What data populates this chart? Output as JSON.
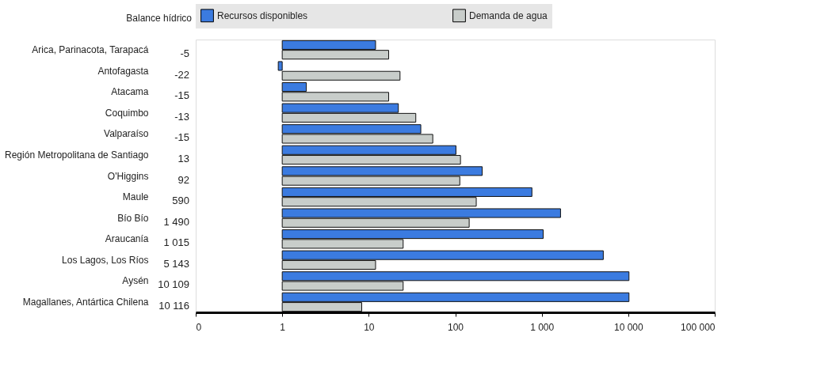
{
  "chart_data": {
    "type": "bar",
    "orientation": "horizontal",
    "log": "x",
    "categories": [
      "Arica, Parinacota, Tarapacá",
      "Antofagasta",
      "Atacama",
      "Coquimbo",
      "Valparaíso",
      "Región Metropolitana de Santiago",
      "O'Higgins",
      "Maule",
      "Bío Bío",
      "Araucanía",
      "Los Lagos, Los Ríos",
      "Aysén",
      "Magallanes, Antártica Chilena"
    ],
    "series": [
      {
        "name": "Recursos disponibles",
        "color": "#3b7be0",
        "base": [
          1,
          1,
          1,
          1,
          1,
          1,
          1,
          1,
          1,
          1,
          1,
          1,
          1
        ],
        "values": [
          11,
          -0.1,
          0.9,
          21,
          39,
          101,
          204,
          769,
          1649,
          1039,
          5149,
          10199,
          10199
        ]
      },
      {
        "name": "Demanda de agua",
        "color": "#c8cdca",
        "base": [
          1,
          1,
          1,
          1,
          1,
          1,
          1,
          1,
          1,
          1,
          1,
          1,
          1
        ],
        "values": [
          16,
          22,
          16,
          34,
          54,
          114,
          112,
          174,
          144,
          24,
          11,
          24,
          7.3
        ]
      }
    ],
    "xlim": [
      0.1,
      100000
    ],
    "xticks": [
      {
        "value": 0.1,
        "label": "0"
      },
      1,
      10,
      100,
      {
        "value": 1000,
        "label": "1 000"
      },
      {
        "value": 10000,
        "label": "10 000"
      },
      {
        "value": 100000,
        "label": "100 000"
      }
    ],
    "annotations": [
      "Balance hídrico",
      "-5",
      "-22",
      "-15",
      "-13",
      "-15",
      "13",
      "92",
      "590",
      "1 490",
      "1 015",
      "5 143",
      "10 109",
      "10 116"
    ],
    "legend": "top",
    "grid": false
  }
}
